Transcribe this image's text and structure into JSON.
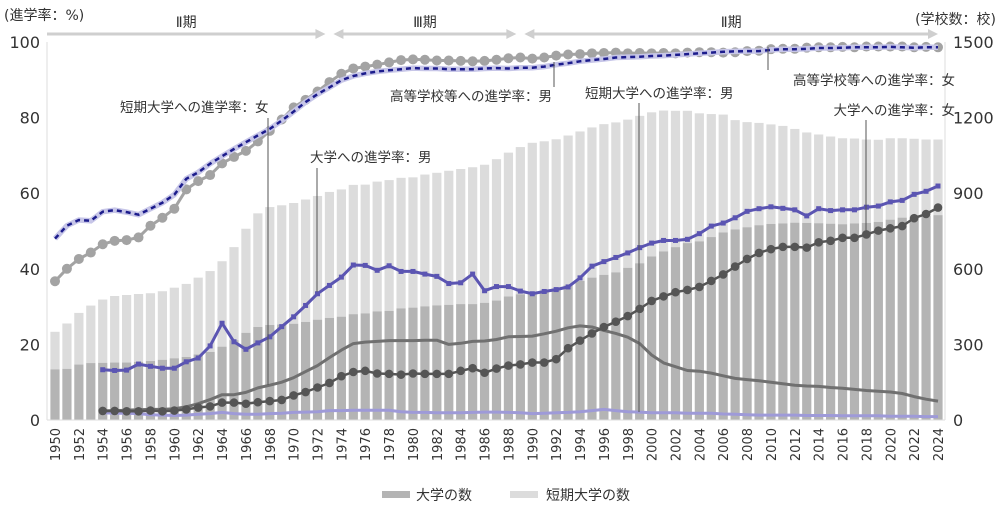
{
  "chart_data": {
    "type": "bar+line",
    "left_axis_label": "(進学率：%)",
    "right_axis_label": "(学校数：校)",
    "left_ylim": [
      0,
      100
    ],
    "left_ticks": [
      "0",
      "20",
      "40",
      "60",
      "80",
      "100"
    ],
    "right_ylim": [
      0,
      1500
    ],
    "right_ticks": [
      "0",
      "300",
      "600",
      "900",
      "1200",
      "1500"
    ],
    "x_start": 1950,
    "x_end": 2024,
    "x_tick_step": 2,
    "grid": false,
    "legend_position": "bottom",
    "legend": [
      {
        "label": "大学の数",
        "color": "#b4b4b4"
      },
      {
        "label": "短期大学の数",
        "color": "#dcdcdc"
      }
    ],
    "periods": [
      {
        "label": "Ⅱ期",
        "from": 1950,
        "to": 1973
      },
      {
        "label": "Ⅲ期",
        "from": 1973,
        "to": 1989
      },
      {
        "label": "Ⅱ期",
        "from": 1989,
        "to": 2024
      }
    ],
    "bars": {
      "stacked": true,
      "universities": [
        201,
        203,
        220,
        226,
        227,
        228,
        228,
        231,
        234,
        239,
        245,
        250,
        260,
        270,
        291,
        317,
        346,
        369,
        377,
        379,
        382,
        389,
        398,
        405,
        410,
        420,
        423,
        431,
        433,
        443,
        446,
        451,
        455,
        457,
        460,
        460,
        465,
        474,
        490,
        499,
        507,
        514,
        523,
        534,
        552,
        565,
        576,
        586,
        604,
        622,
        649,
        669,
        686,
        702,
        709,
        726,
        744,
        756,
        765,
        773,
        778,
        780,
        783,
        782,
        781,
        779,
        777,
        780,
        782,
        786,
        795,
        803,
        807,
        810,
        813
      ],
      "junior_colleges": [
        149,
        180,
        205,
        228,
        251,
        264,
        268,
        269,
        269,
        272,
        280,
        290,
        305,
        321,
        339,
        369,
        413,
        451,
        468,
        473,
        479,
        486,
        491,
        500,
        505,
        513,
        511,
        515,
        519,
        518,
        517,
        523,
        526,
        532,
        536,
        543,
        548,
        561,
        571,
        584,
        593,
        592,
        591,
        595,
        593,
        596,
        598,
        595,
        588,
        585,
        572,
        559,
        541,
        525,
        508,
        488,
        468,
        434,
        417,
        406,
        395,
        387,
        372,
        359,
        352,
        346,
        341,
        337,
        331,
        326,
        323,
        315,
        309,
        303,
        300
      ]
    },
    "series": [
      {
        "name": "高等学校等への進学率：女",
        "start": 1950,
        "color": "#a3a3a3",
        "values": [
          36.7,
          40.0,
          42.6,
          44.3,
          46.5,
          47.4,
          47.6,
          48.3,
          51.4,
          53.5,
          55.9,
          61.0,
          63.2,
          64.8,
          67.9,
          69.6,
          71.2,
          73.7,
          76.5,
          79.5,
          82.7,
          84.7,
          86.9,
          89.4,
          91.6,
          93.0,
          93.5,
          94.0,
          94.6,
          95.2,
          95.4,
          95.3,
          95.1,
          95.1,
          95.0,
          94.9,
          95.0,
          95.3,
          95.7,
          95.9,
          95.6,
          95.9,
          96.4,
          96.7,
          96.8,
          97.0,
          97.1,
          97.2,
          97.0,
          97.1,
          97.0,
          97.1,
          97.0,
          97.2,
          97.3,
          97.3,
          97.2,
          97.3,
          97.6,
          97.7,
          98.1,
          98.2,
          98.2,
          98.5,
          98.6,
          98.6,
          98.7,
          98.6,
          98.8,
          98.8,
          98.8,
          98.8,
          98.6,
          98.7,
          98.6
        ]
      },
      {
        "name": "高等学校等への進学率：男",
        "start": 1950,
        "color": "#1c1c8c",
        "values": [
          48.0,
          51.4,
          52.9,
          52.7,
          55.1,
          55.5,
          55.0,
          54.3,
          55.9,
          57.5,
          59.6,
          63.8,
          65.5,
          67.8,
          69.8,
          71.7,
          73.5,
          75.3,
          77.0,
          79.2,
          81.6,
          84.1,
          86.2,
          88.0,
          89.9,
          91.0,
          91.7,
          92.2,
          92.5,
          92.8,
          93.1,
          93.0,
          93.0,
          92.8,
          92.8,
          92.8,
          93.0,
          93.1,
          93.0,
          93.2,
          93.2,
          93.5,
          94.0,
          94.4,
          94.9,
          95.2,
          95.5,
          95.9,
          96.0,
          96.1,
          96.3,
          96.4,
          96.6,
          96.8,
          97.0,
          97.2,
          97.4,
          97.5,
          97.6,
          97.6,
          97.9,
          98.1,
          98.1,
          98.2,
          98.4,
          98.4,
          98.5,
          98.6,
          98.6,
          98.6,
          98.7,
          98.6,
          98.5,
          98.6,
          98.6
        ]
      },
      {
        "name": "大学への進学率：男",
        "start": 1954,
        "color": "#5b55b2",
        "values": [
          13.3,
          13.1,
          13.2,
          14.8,
          14.2,
          13.7,
          13.7,
          15.4,
          16.4,
          19.6,
          25.6,
          20.7,
          18.7,
          20.4,
          22.0,
          24.7,
          27.3,
          30.3,
          33.4,
          35.6,
          37.8,
          41.0,
          40.9,
          39.6,
          40.8,
          39.3,
          39.3,
          38.6,
          38.0,
          36.1,
          36.3,
          38.6,
          34.2,
          35.3,
          35.3,
          34.1,
          33.4,
          34.0,
          34.5,
          35.2,
          37.6,
          40.7,
          41.9,
          43.0,
          44.2,
          45.6,
          46.8,
          47.5,
          47.5,
          47.8,
          49.3,
          51.3,
          52.1,
          53.5,
          55.2,
          55.9,
          56.4,
          56.0,
          55.6,
          54.0,
          55.9,
          55.4,
          55.6,
          55.6,
          56.3,
          56.6,
          57.7,
          58.1,
          59.7,
          60.5,
          61.9
        ]
      },
      {
        "name": "大学への進学率：女",
        "start": 1954,
        "color": "#555555",
        "values": [
          2.4,
          2.4,
          2.3,
          2.3,
          2.5,
          2.3,
          2.5,
          2.8,
          3.3,
          3.6,
          4.6,
          4.6,
          4.3,
          4.7,
          5.0,
          5.3,
          6.5,
          7.4,
          8.6,
          9.8,
          11.6,
          12.7,
          13.0,
          12.3,
          12.2,
          12.0,
          12.3,
          12.2,
          12.2,
          12.2,
          13.0,
          13.7,
          12.5,
          13.6,
          14.4,
          14.7,
          15.2,
          15.2,
          16.1,
          19.0,
          21.0,
          22.9,
          24.6,
          26.0,
          27.5,
          29.4,
          31.5,
          32.7,
          33.8,
          34.4,
          35.2,
          36.8,
          38.5,
          40.6,
          42.6,
          44.2,
          45.2,
          45.8,
          45.8,
          45.6,
          47.0,
          47.4,
          48.2,
          48.2,
          49.1,
          50.1,
          50.7,
          51.3,
          53.4,
          54.5,
          56.2
        ]
      },
      {
        "name": "短期大学への進学率：女",
        "start": 1954,
        "color": "#707070",
        "values": [
          2.4,
          2.5,
          2.6,
          2.7,
          2.8,
          2.8,
          3.0,
          3.5,
          4.3,
          5.4,
          6.7,
          6.7,
          7.3,
          8.5,
          9.2,
          10.0,
          11.2,
          12.8,
          14.4,
          16.5,
          18.5,
          20.2,
          20.6,
          20.8,
          21.0,
          21.0,
          21.0,
          21.1,
          21.1,
          20.0,
          20.3,
          20.8,
          20.9,
          21.3,
          22.0,
          22.1,
          22.2,
          22.8,
          23.5,
          24.4,
          24.9,
          24.6,
          23.7,
          22.9,
          21.9,
          20.2,
          17.2,
          15.1,
          14.1,
          13.1,
          12.9,
          12.4,
          11.7,
          11.0,
          10.7,
          10.4,
          10.0,
          9.6,
          9.2,
          9.0,
          8.9,
          8.6,
          8.4,
          8.1,
          7.8,
          7.6,
          7.4,
          7.0,
          6.2,
          5.5,
          5.0
        ]
      },
      {
        "name": "短期大学への進学率：男",
        "start": 1954,
        "color": "#9e9ad8",
        "values": [
          1.9,
          1.8,
          1.8,
          1.7,
          1.4,
          1.3,
          1.2,
          1.3,
          1.5,
          1.7,
          2.0,
          1.7,
          1.5,
          1.5,
          1.7,
          1.8,
          2.0,
          2.1,
          2.2,
          2.5,
          2.5,
          2.6,
          2.6,
          2.6,
          2.6,
          2.2,
          2.0,
          2.0,
          1.9,
          1.9,
          1.9,
          2.0,
          2.1,
          2.1,
          2.0,
          1.9,
          1.7,
          1.8,
          1.9,
          2.0,
          2.2,
          2.5,
          2.8,
          2.5,
          2.2,
          2.1,
          1.9,
          1.9,
          1.9,
          1.8,
          1.8,
          1.8,
          1.6,
          1.5,
          1.4,
          1.3,
          1.3,
          1.3,
          1.3,
          1.2,
          1.2,
          1.2,
          1.1,
          1.1,
          1.1,
          1.1,
          1.0,
          1.0,
          1.0,
          0.9,
          0.9
        ]
      }
    ],
    "annotations": [
      "短期大学への進学率：女",
      "大学への進学率：男",
      "高等学校等への進学率：男",
      "短期大学への進学率：男",
      "高等学校等への進学率：女",
      "大学への進学率：女"
    ]
  }
}
